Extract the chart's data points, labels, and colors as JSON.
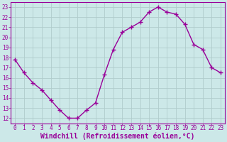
{
  "x": [
    0,
    1,
    2,
    3,
    4,
    5,
    6,
    7,
    8,
    9,
    10,
    11,
    12,
    13,
    14,
    15,
    16,
    17,
    18,
    19,
    20,
    21,
    22,
    23
  ],
  "y": [
    17.8,
    16.5,
    15.5,
    14.8,
    13.8,
    12.8,
    12.0,
    12.0,
    12.8,
    13.5,
    16.3,
    18.8,
    20.5,
    21.0,
    21.5,
    22.5,
    23.0,
    22.5,
    22.3,
    21.3,
    19.3,
    18.8,
    17.0,
    16.5
  ],
  "line_color": "#990099",
  "marker": "+",
  "marker_size": 4,
  "marker_lw": 1.0,
  "bg_color": "#cce8e8",
  "grid_color": "#b0cccc",
  "xlabel": "Windchill (Refroidissement éolien,°C)",
  "xlabel_color": "#990099",
  "tick_color": "#990099",
  "spine_color": "#990099",
  "ylim": [
    11.5,
    23.5
  ],
  "xlim": [
    -0.5,
    23.5
  ],
  "yticks": [
    12,
    13,
    14,
    15,
    16,
    17,
    18,
    19,
    20,
    21,
    22,
    23
  ],
  "xticks": [
    0,
    1,
    2,
    3,
    4,
    5,
    6,
    7,
    8,
    9,
    10,
    11,
    12,
    13,
    14,
    15,
    16,
    17,
    18,
    19,
    20,
    21,
    22,
    23
  ],
  "tick_fontsize": 5.5,
  "xlabel_fontsize": 7.0,
  "line_width": 1.0
}
